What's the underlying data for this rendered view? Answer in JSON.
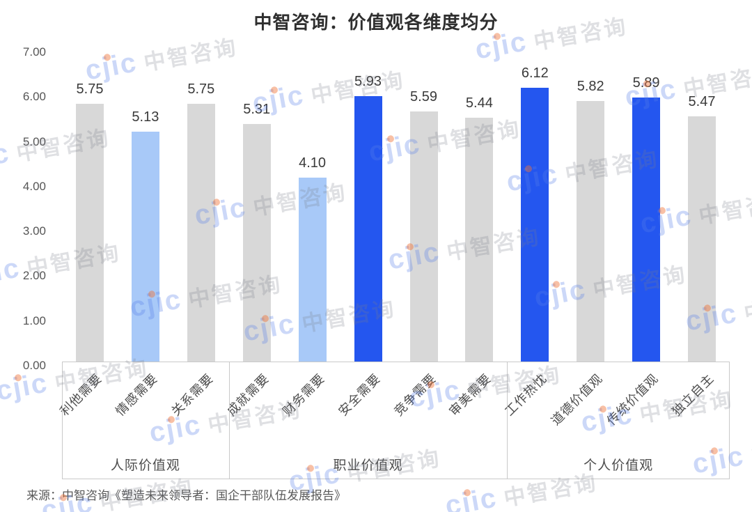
{
  "title": "中智咨询：价值观各维度均分",
  "source": "来源：中智咨询《塑造未来领导者：国企干部队伍发展报告》",
  "watermark": {
    "logo": "cjic",
    "brand": "中智咨询"
  },
  "chart_data": {
    "type": "bar",
    "title": "中智咨询：价值观各维度均分",
    "xlabel": "",
    "ylabel": "",
    "ylim": [
      0,
      7
    ],
    "ytick_labels": [
      "0.00",
      "1.00",
      "2.00",
      "3.00",
      "4.00",
      "5.00",
      "6.00",
      "7.00"
    ],
    "grid": false,
    "legend_position": "none",
    "palette": {
      "gray": "#d8d8d8",
      "light_blue": "#a8c9f8",
      "blue": "#2456ef"
    },
    "groups": [
      {
        "label": "人际价值观",
        "categories": [
          "利他需要",
          "情感需要",
          "关系需要"
        ],
        "values": [
          5.75,
          5.13,
          5.75
        ],
        "value_labels": [
          "5.75",
          "5.13",
          "5.75"
        ],
        "bar_colors": [
          "gray",
          "light_blue",
          "gray"
        ]
      },
      {
        "label": "职业价值观",
        "categories": [
          "成就需要",
          "财务需要",
          "安全需要",
          "竞争需要",
          "审美需要"
        ],
        "values": [
          5.31,
          4.1,
          5.93,
          5.59,
          5.44
        ],
        "value_labels": [
          "5.31",
          "4.10",
          "5.93",
          "5.59",
          "5.44"
        ],
        "bar_colors": [
          "gray",
          "light_blue",
          "blue",
          "gray",
          "gray"
        ]
      },
      {
        "label": "个人价值观",
        "categories": [
          "工作热忱",
          "道德价值观",
          "传统价值观",
          "独立自主"
        ],
        "values": [
          6.12,
          5.82,
          5.89,
          5.47
        ],
        "value_labels": [
          "6.12",
          "5.82",
          "5.89",
          "5.47"
        ],
        "bar_colors": [
          "blue",
          "gray",
          "blue",
          "gray"
        ]
      }
    ]
  }
}
